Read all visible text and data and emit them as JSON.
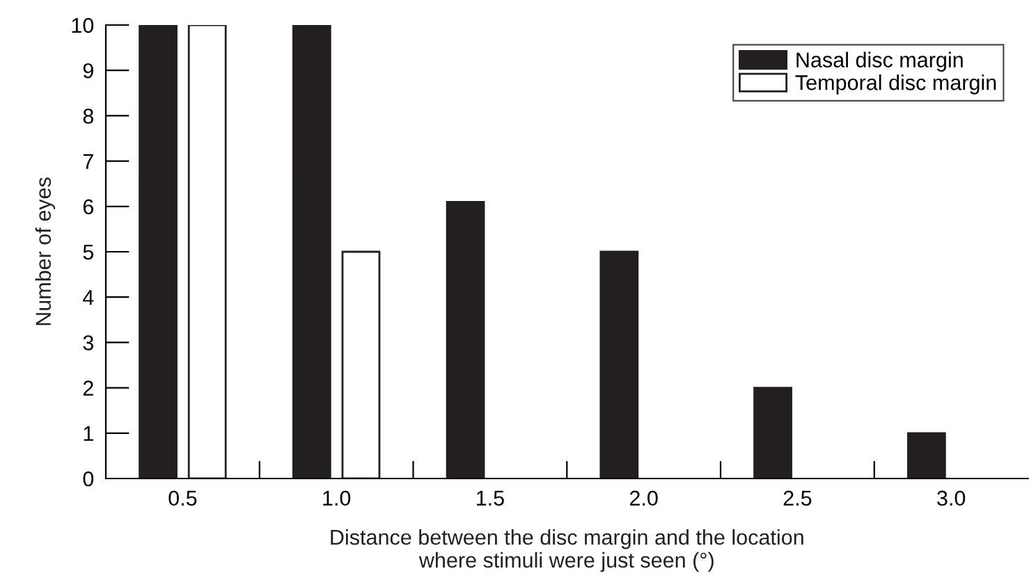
{
  "chart_data": {
    "type": "bar",
    "xlabel": "Distance between the disc margin and the location\nwhere stimuli were just seen (°)",
    "ylabel": "Number of eyes",
    "categories": [
      "0.5",
      "1.0",
      "1.5",
      "2.0",
      "2.5",
      "3.0"
    ],
    "series": [
      {
        "name": "Nasal disc margin",
        "color": "#231f20",
        "values": [
          10,
          10,
          6.1,
          5,
          2,
          1
        ]
      },
      {
        "name": "Temporal disc margin",
        "color": "#ffffff",
        "values": [
          10,
          5,
          0,
          0,
          0,
          0
        ]
      }
    ],
    "ylim": [
      0,
      10
    ],
    "yticks": [
      0,
      1,
      2,
      3,
      4,
      5,
      6,
      7,
      8,
      9,
      10
    ],
    "grid": false,
    "legend": "top right"
  }
}
